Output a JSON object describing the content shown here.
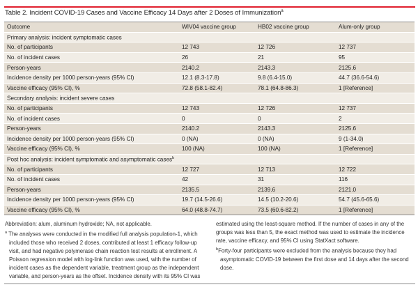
{
  "title": "Table 2. Incident COVID-19 Cases and Vaccine Efficacy 14 Days after 2 Doses of Immunization",
  "title_footnote_mark": "a",
  "colors": {
    "accent_line": "#e0202e",
    "row_light": "#f1ede6",
    "row_dark": "#e4ddd2"
  },
  "columns": [
    "Outcome",
    "WIV04 vaccine group",
    "HB02 vaccine group",
    "Alum-only group"
  ],
  "sections": [
    {
      "heading": "Primary analysis: incident symptomatic cases",
      "heading_mark": "",
      "rows": [
        [
          "No. of participants",
          "12 743",
          "12 726",
          "12 737"
        ],
        [
          "No. of incident cases",
          "26",
          "21",
          "95"
        ],
        [
          "Person-years",
          "2140.2",
          "2143.3",
          "2125.6"
        ],
        [
          "Incidence density per 1000 person-years (95% CI)",
          "12.1 (8.3-17.8)",
          "9.8 (6.4-15.0)",
          "44.7 (36.6-54.6)"
        ],
        [
          "Vaccine efficacy (95% CI), %",
          "72.8 (58.1-82.4)",
          "78.1 (64.8-86.3)",
          "1 [Reference]"
        ]
      ]
    },
    {
      "heading": "Secondary analysis: incident severe cases",
      "heading_mark": "",
      "rows": [
        [
          "No. of participants",
          "12 743",
          "12 726",
          "12 737"
        ],
        [
          "No. of incident cases",
          "0",
          "0",
          "2"
        ],
        [
          "Person-years",
          "2140.2",
          "2143.3",
          "2125.6"
        ],
        [
          "Incidence density per 1000 person-years (95% CI)",
          "0 (NA)",
          "0 (NA)",
          "9 (1-34.0)"
        ],
        [
          "Vaccine efficacy (95% CI), %",
          "100 (NA)",
          "100 (NA)",
          "1 [Reference]"
        ]
      ]
    },
    {
      "heading": "Post hoc analysis: incident symptomatic and asymptomatic cases",
      "heading_mark": "b",
      "rows": [
        [
          "No. of participants",
          "12 727",
          "12 713",
          "12 722"
        ],
        [
          "No. of incident cases",
          "42",
          "31",
          "116"
        ],
        [
          "Person-years",
          "2135.5",
          "2139.6",
          "2121.0"
        ],
        [
          "Incidence density per 1000 person-years (95% CI)",
          "19.7 (14.5-26.6)",
          "14.5 (10.2-20.6)",
          "54.7 (45.6-65.6)"
        ],
        [
          "Vaccine efficacy (95% CI), %",
          "64.0 (48.8-74.7)",
          "73.5 (60.6-82.2)",
          "1 [Reference]"
        ]
      ]
    }
  ],
  "abbreviation": "Abbreviation: alum, aluminum hydroxide; NA, not applicable.",
  "footnote_a_mark": "a",
  "footnote_a_left": "The analyses were conducted in the modified full analysis population-1, which included those who received 2 doses, contributed at least 1 efficacy follow-up visit, and had negative polymerase chain reaction test results at enrollment. A Poisson regression model with log-link function was used, with the number of incident cases as the dependent variable, treatment group as the independent variable, and person-years as the offset. Incidence density with its 95% CI was",
  "footnote_a_right": "estimated using the least-square method. If the number of cases in any of the groups was less than 5, the exact method was used to estimate the incidence rate, vaccine efficacy, and 95% CI using StatXact software.",
  "footnote_b_mark": "b",
  "footnote_b": "Forty-four participants were excluded from the analysis because they had asymptomatic COVID-19 between the first dose and 14 days after the second dose."
}
